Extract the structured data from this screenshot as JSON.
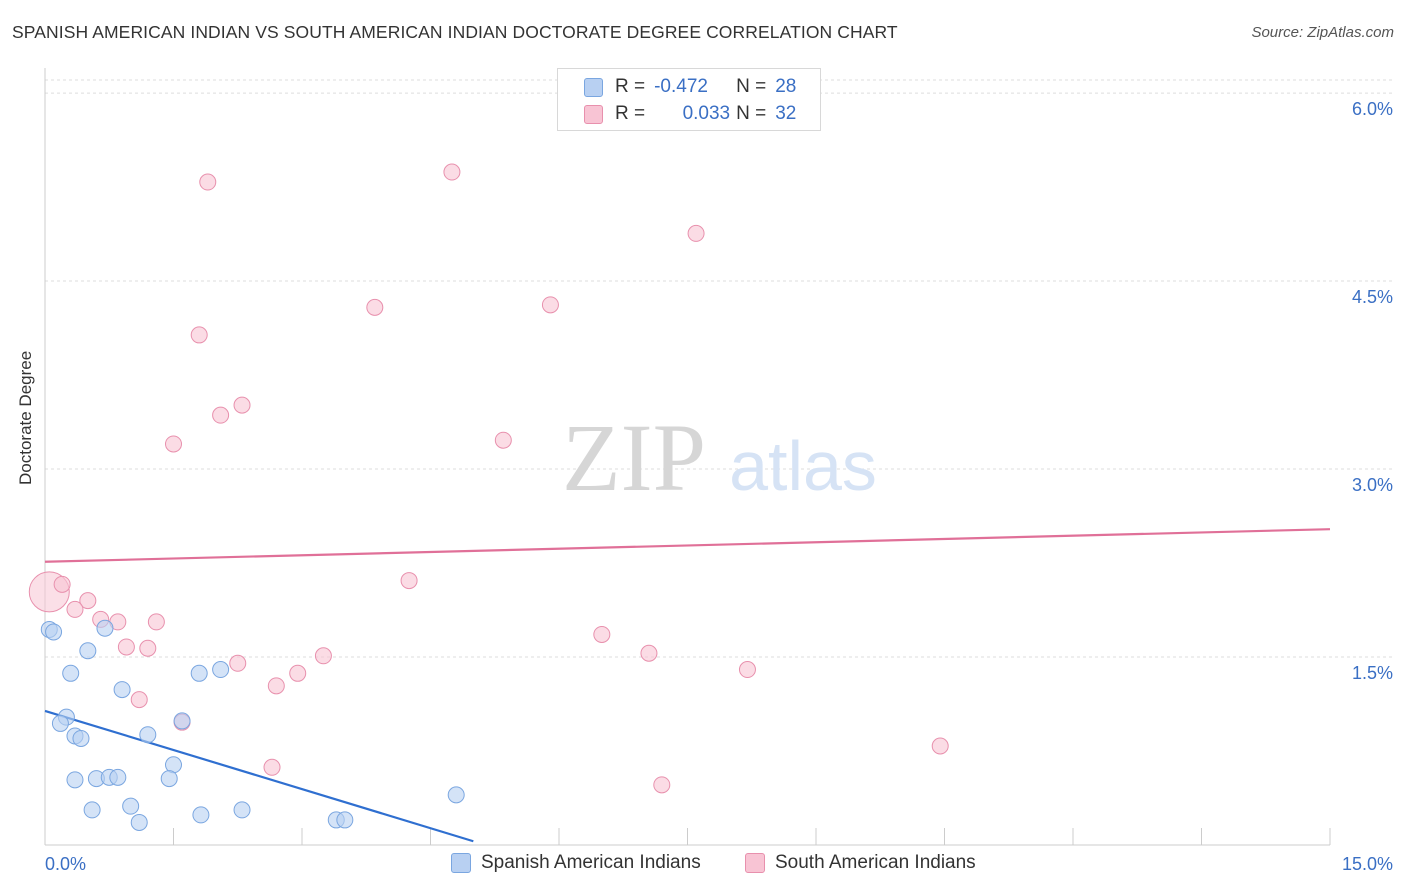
{
  "header": {
    "title": "SPANISH AMERICAN INDIAN VS SOUTH AMERICAN INDIAN DOCTORATE DEGREE CORRELATION CHART",
    "source": "Source: ZipAtlas.com"
  },
  "legend_top": {
    "rows": [
      {
        "r_label": "R =",
        "r_value": "-0.472",
        "n_label": "N =",
        "n_value": "28"
      },
      {
        "r_label": "R =",
        "r_value": "0.033",
        "n_label": "N =",
        "n_value": "32"
      }
    ]
  },
  "colors": {
    "blue_fill": "#b8d0f2",
    "blue_stroke": "#7aa6e0",
    "blue_line": "#2f6fd0",
    "pink_fill": "#f8c4d4",
    "pink_stroke": "#e890ad",
    "pink_line": "#e07098",
    "grid": "#dddddd",
    "tick_text": "#3a6fc4"
  },
  "chart_data": {
    "type": "scatter",
    "title": "SPANISH AMERICAN INDIAN VS SOUTH AMERICAN INDIAN DOCTORATE DEGREE CORRELATION CHART",
    "xlabel": "",
    "ylabel": "Doctorate Degree",
    "xlim": [
      0,
      15
    ],
    "ylim": [
      0,
      6.2
    ],
    "x_tick_labels": [
      "0.0%",
      "15.0%"
    ],
    "y_ticks": [
      1.5,
      3.0,
      4.5,
      6.0
    ],
    "y_tick_labels": [
      "1.5%",
      "3.0%",
      "4.5%",
      "6.0%"
    ],
    "legend_position": "bottom-center",
    "watermark": "ZIPatlas",
    "series": [
      {
        "name": "Spanish American Indians",
        "color": "blue",
        "trend": {
          "x": [
            0,
            5.0
          ],
          "y": [
            1.07,
            0.03
          ]
        },
        "points": [
          [
            0.05,
            1.72
          ],
          [
            0.1,
            1.7
          ],
          [
            0.5,
            1.55
          ],
          [
            0.3,
            1.37
          ],
          [
            0.7,
            1.73
          ],
          [
            0.9,
            1.24
          ],
          [
            1.8,
            1.37
          ],
          [
            2.05,
            1.4
          ],
          [
            1.6,
            0.99
          ],
          [
            0.25,
            1.02
          ],
          [
            0.18,
            0.97
          ],
          [
            0.35,
            0.87
          ],
          [
            0.42,
            0.85
          ],
          [
            1.2,
            0.88
          ],
          [
            1.5,
            0.64
          ],
          [
            0.6,
            0.53
          ],
          [
            0.75,
            0.54
          ],
          [
            0.85,
            0.54
          ],
          [
            0.55,
            0.28
          ],
          [
            1.0,
            0.31
          ],
          [
            1.45,
            0.53
          ],
          [
            2.3,
            0.28
          ],
          [
            1.1,
            0.18
          ],
          [
            1.82,
            0.24
          ],
          [
            3.4,
            0.2
          ],
          [
            3.5,
            0.2
          ],
          [
            4.8,
            0.4
          ],
          [
            0.35,
            0.52
          ]
        ]
      },
      {
        "name": "South American Indians",
        "color": "pink",
        "trend": {
          "x": [
            0,
            15
          ],
          "y": [
            2.26,
            2.52
          ]
        },
        "points": [
          [
            0.05,
            2.02
          ],
          [
            0.2,
            2.08
          ],
          [
            0.5,
            1.95
          ],
          [
            0.35,
            1.88
          ],
          [
            0.65,
            1.8
          ],
          [
            0.85,
            1.78
          ],
          [
            1.3,
            1.78
          ],
          [
            0.95,
            1.58
          ],
          [
            1.2,
            1.57
          ],
          [
            2.25,
            1.45
          ],
          [
            1.6,
            0.98
          ],
          [
            1.1,
            1.16
          ],
          [
            2.7,
            1.27
          ],
          [
            2.95,
            1.37
          ],
          [
            3.25,
            1.51
          ],
          [
            2.65,
            0.62
          ],
          [
            1.5,
            3.2
          ],
          [
            2.05,
            3.43
          ],
          [
            2.3,
            3.51
          ],
          [
            1.8,
            4.07
          ],
          [
            1.9,
            5.29
          ],
          [
            3.85,
            4.29
          ],
          [
            4.75,
            5.37
          ],
          [
            5.35,
            3.23
          ],
          [
            5.9,
            4.31
          ],
          [
            7.6,
            4.88
          ],
          [
            4.25,
            2.11
          ],
          [
            6.5,
            1.68
          ],
          [
            7.05,
            1.53
          ],
          [
            8.2,
            1.4
          ],
          [
            10.45,
            0.79
          ],
          [
            7.2,
            0.48
          ]
        ]
      }
    ]
  }
}
